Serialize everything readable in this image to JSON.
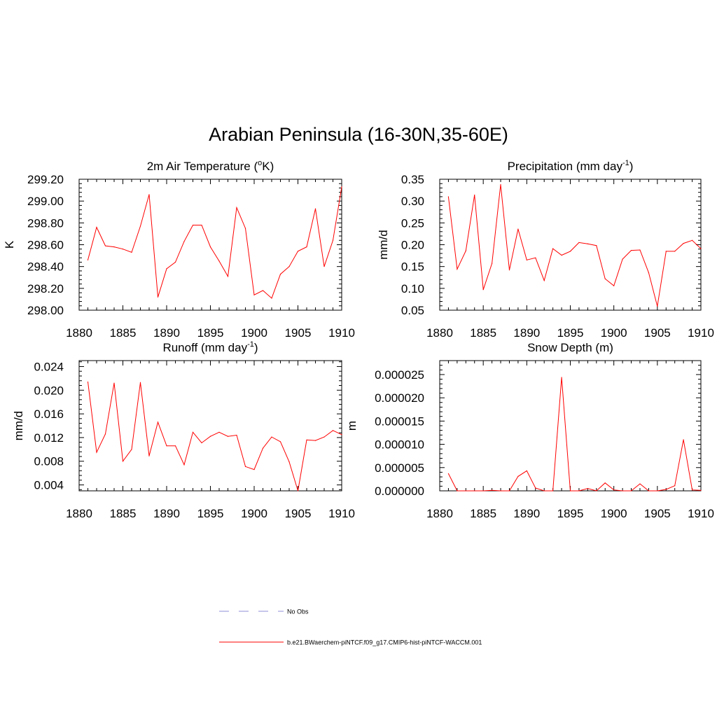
{
  "title": "Arabian Peninsula (16-30N,35-60E)",
  "colors": {
    "model_line": "#ff0000",
    "obs_line": "#8c8cd9",
    "axis": "#000000"
  },
  "legend": {
    "position": "bottom-center",
    "entries": [
      {
        "label": "No Obs",
        "style": "dashed",
        "color": "#8c8cd9"
      },
      {
        "label": "b.e21.BWaerchem-piNTCF.f09_g17.CMIP6-hist-piNTCF-WACCM.001",
        "style": "solid",
        "color": "#ff0000"
      }
    ]
  },
  "chart_data": [
    {
      "type": "line",
      "title_main": "2m Air Temperature (",
      "title_sup": "o",
      "title_tail": "K)",
      "ylabel": "K",
      "xlim": [
        1880,
        1910
      ],
      "ylim": [
        298.0,
        299.2
      ],
      "yticks": [
        "298.00",
        "298.20",
        "298.40",
        "298.60",
        "298.80",
        "299.00",
        "299.20"
      ],
      "xticks": [
        "1880",
        "1885",
        "1890",
        "1895",
        "1900",
        "1905",
        "1910"
      ],
      "grid": false,
      "x": [
        1881,
        1882,
        1883,
        1884,
        1885,
        1886,
        1887,
        1888,
        1889,
        1890,
        1891,
        1892,
        1893,
        1894,
        1895,
        1896,
        1897,
        1898,
        1899,
        1900,
        1901,
        1902,
        1903,
        1904,
        1905,
        1906,
        1907,
        1908,
        1909,
        1910
      ],
      "values": [
        298.46,
        298.76,
        298.59,
        298.58,
        298.56,
        298.53,
        298.77,
        299.06,
        298.12,
        298.38,
        298.44,
        298.63,
        298.78,
        298.78,
        298.58,
        298.45,
        298.31,
        298.94,
        298.75,
        298.14,
        298.18,
        298.11,
        298.33,
        298.4,
        298.54,
        298.58,
        298.93,
        298.4,
        298.64,
        299.13
      ]
    },
    {
      "type": "line",
      "title_main": "Precipitation (mm day",
      "title_sup": "-1",
      "title_tail": ")",
      "ylabel": "mm/d",
      "xlim": [
        1880,
        1910
      ],
      "ylim": [
        0.05,
        0.35
      ],
      "yticks": [
        "0.05",
        "0.10",
        "0.15",
        "0.20",
        "0.25",
        "0.30",
        "0.35"
      ],
      "xticks": [
        "1880",
        "1885",
        "1890",
        "1895",
        "1900",
        "1905",
        "1910"
      ],
      "grid": false,
      "x": [
        1881,
        1882,
        1883,
        1884,
        1885,
        1886,
        1887,
        1888,
        1889,
        1890,
        1891,
        1892,
        1893,
        1894,
        1895,
        1896,
        1897,
        1898,
        1899,
        1900,
        1901,
        1902,
        1903,
        1904,
        1905,
        1906,
        1907,
        1908,
        1909,
        1910
      ],
      "values": [
        0.31,
        0.144,
        0.186,
        0.314,
        0.097,
        0.157,
        0.338,
        0.142,
        0.236,
        0.165,
        0.17,
        0.118,
        0.191,
        0.176,
        0.185,
        0.205,
        0.202,
        0.198,
        0.122,
        0.106,
        0.167,
        0.187,
        0.188,
        0.136,
        0.059,
        0.185,
        0.185,
        0.203,
        0.21,
        0.191
      ]
    },
    {
      "type": "line",
      "title_main": "Runoff (mm day",
      "title_sup": "-1",
      "title_tail": ")",
      "ylabel": "mm/d",
      "xlim": [
        1880,
        1910
      ],
      "ylim": [
        0.003,
        0.025
      ],
      "yticks": [
        "0.004",
        "0.008",
        "0.012",
        "0.016",
        "0.020",
        "0.024"
      ],
      "xticks": [
        "1880",
        "1885",
        "1890",
        "1895",
        "1900",
        "1905",
        "1910"
      ],
      "grid": false,
      "x": [
        1881,
        1882,
        1883,
        1884,
        1885,
        1886,
        1887,
        1888,
        1889,
        1890,
        1891,
        1892,
        1893,
        1894,
        1895,
        1896,
        1897,
        1898,
        1899,
        1900,
        1901,
        1902,
        1903,
        1904,
        1905,
        1906,
        1907,
        1908,
        1909,
        1910
      ],
      "values": [
        0.0214,
        0.0095,
        0.0126,
        0.0212,
        0.008,
        0.01,
        0.0213,
        0.0089,
        0.0146,
        0.0106,
        0.0106,
        0.0074,
        0.0129,
        0.0111,
        0.0122,
        0.0129,
        0.0122,
        0.0124,
        0.0071,
        0.0066,
        0.0102,
        0.0121,
        0.0113,
        0.0079,
        0.003,
        0.0116,
        0.0115,
        0.0121,
        0.0132,
        0.0125
      ]
    },
    {
      "type": "line",
      "title_main": "Snow Depth (m)",
      "title_sup": "",
      "title_tail": "",
      "ylabel": "m",
      "xlim": [
        1880,
        1910
      ],
      "ylim": [
        0.0,
        2.8e-05
      ],
      "yticks": [
        "0.000000",
        "0.000005",
        "0.000010",
        "0.000015",
        "0.000020",
        "0.000025"
      ],
      "xticks": [
        "1880",
        "1885",
        "1890",
        "1895",
        "1900",
        "1905",
        "1910"
      ],
      "grid": false,
      "x": [
        1881,
        1882,
        1883,
        1884,
        1885,
        1886,
        1887,
        1888,
        1889,
        1890,
        1891,
        1892,
        1893,
        1894,
        1895,
        1896,
        1897,
        1898,
        1899,
        1900,
        1901,
        1902,
        1903,
        1904,
        1905,
        1906,
        1907,
        1908,
        1909,
        1910
      ],
      "values": [
        3.7e-06,
        0.0,
        0.0,
        0.0,
        0.0,
        1e-07,
        0.0,
        0.0,
        3.1e-06,
        4.3e-06,
        6e-07,
        0.0,
        0.0,
        2.44e-05,
        0.0,
        0.0,
        5e-07,
        0.0,
        1.7e-06,
        2e-07,
        0.0,
        0.0,
        1.5e-06,
        0.0,
        0.0,
        3e-07,
        1.1e-06,
        1.1e-05,
        2e-07,
        1e-07
      ]
    }
  ]
}
